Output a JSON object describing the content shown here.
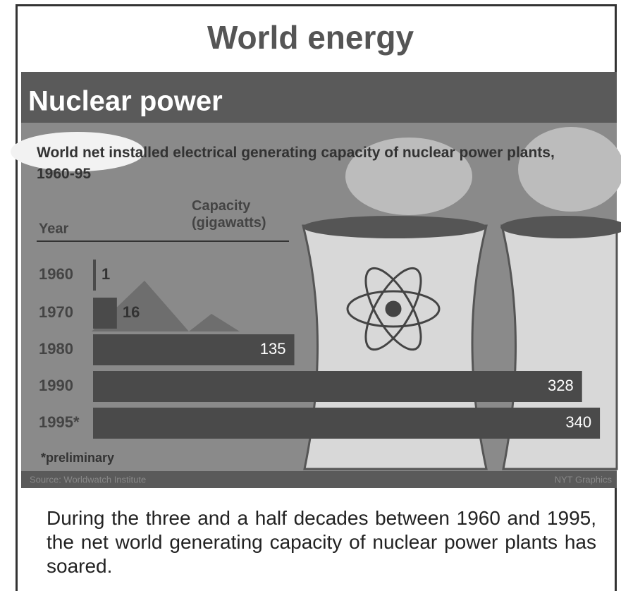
{
  "header": {
    "title": "World energy"
  },
  "chart_data": {
    "type": "bar",
    "orientation": "horizontal",
    "title": "Nuclear power",
    "subtitle": "World net installed electrical generating capacity of nuclear power plants, 1960-95",
    "category_label": "Year",
    "value_label": "Capacity (gigawatts)",
    "categories": [
      "1960",
      "1970",
      "1980",
      "1990",
      "1995*"
    ],
    "values": [
      1,
      16,
      135,
      328,
      340
    ],
    "color": "#4a4a4a",
    "note": "*preliminary",
    "source": "Source: Worldwatch Institute",
    "credit": "NYT Graphics"
  },
  "caption": "During the three and a half decades between 1960 and 1995, the net world generating capacity of nuclear power plants has soared."
}
